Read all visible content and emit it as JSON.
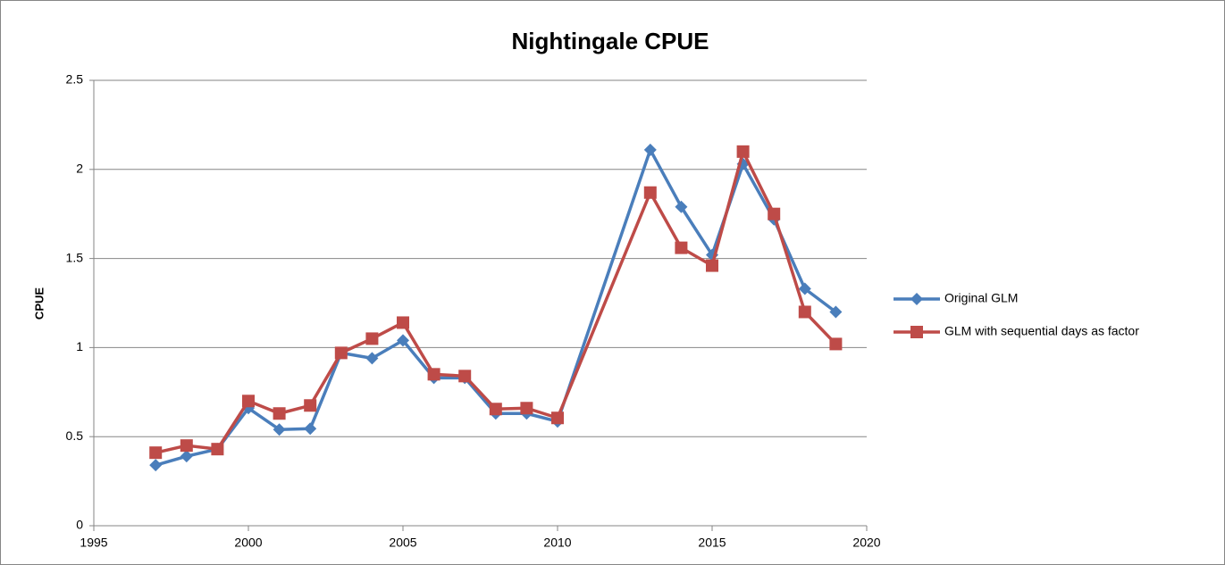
{
  "chart_data": {
    "type": "line",
    "title": "Nightingale CPUE",
    "y_label": "CPUE",
    "x": [
      1997,
      1998,
      1999,
      2000,
      2001,
      2002,
      2003,
      2004,
      2005,
      2006,
      2007,
      2008,
      2009,
      2010,
      2013,
      2014,
      2015,
      2016,
      2017,
      2018,
      2019
    ],
    "series": [
      {
        "name": "Original GLM",
        "color": "#4a7ebb",
        "marker": "diamond",
        "values": [
          0.34,
          0.39,
          0.43,
          0.66,
          0.54,
          0.545,
          0.97,
          0.94,
          1.04,
          0.83,
          0.83,
          0.63,
          0.63,
          0.585,
          2.11,
          1.79,
          1.52,
          2.03,
          1.72,
          1.33,
          1.2
        ]
      },
      {
        "name": "GLM with sequential days as factor",
        "color": "#be4b48",
        "marker": "square",
        "values": [
          0.41,
          0.45,
          0.43,
          0.7,
          0.63,
          0.675,
          0.97,
          1.05,
          1.14,
          0.85,
          0.84,
          0.655,
          0.66,
          0.605,
          1.87,
          1.56,
          1.46,
          2.1,
          1.75,
          1.2,
          1.02
        ]
      }
    ],
    "xlim": [
      1995,
      2020
    ],
    "xticks": [
      1995,
      2000,
      2005,
      2010,
      2015,
      2020
    ],
    "ylim": [
      0,
      2.5
    ],
    "yticks": [
      0,
      0.5,
      1,
      1.5,
      2,
      2.5
    ],
    "grid": true,
    "legend": "right"
  }
}
